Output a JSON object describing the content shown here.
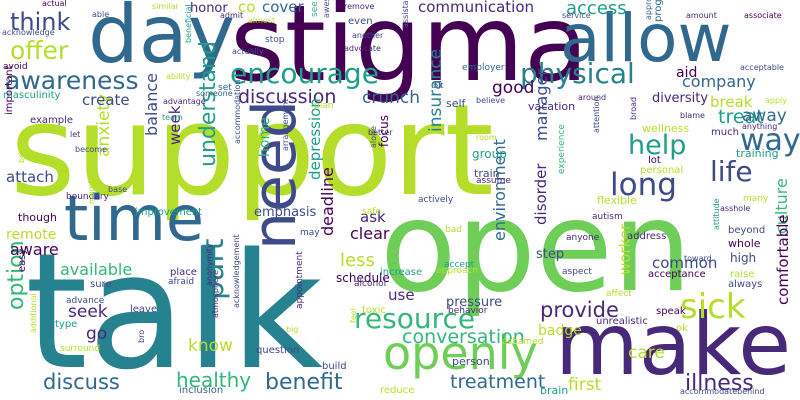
{
  "palette": {
    "lime": "#b5de2b",
    "green": "#6ece58",
    "teal": "#35b779",
    "sea": "#1f9e89",
    "cyan": "#26828e",
    "blue": "#31688e",
    "indigo": "#3e4a89",
    "violet": "#482878",
    "purple": "#440154"
  },
  "words": [
    {
      "text": "support",
      "color": "lime"
    },
    {
      "text": "talk",
      "color": "cyan"
    },
    {
      "text": "open",
      "color": "green"
    },
    {
      "text": "stigma",
      "color": "purple"
    },
    {
      "text": "day",
      "color": "blue"
    },
    {
      "text": "allow",
      "color": "blue"
    },
    {
      "text": "make",
      "color": "violet"
    },
    {
      "text": "time",
      "color": "blue"
    },
    {
      "text": "need",
      "color": "indigo"
    },
    {
      "text": "openly",
      "color": "green"
    },
    {
      "text": "encourage",
      "color": "sea"
    },
    {
      "text": "physical",
      "color": "cyan"
    },
    {
      "text": "awareness",
      "color": "blue"
    },
    {
      "text": "resource",
      "color": "teal"
    },
    {
      "text": "sick",
      "color": "lime"
    },
    {
      "text": "long",
      "color": "indigo"
    },
    {
      "text": "life",
      "color": "indigo"
    },
    {
      "text": "part",
      "color": "cyan"
    },
    {
      "text": "way",
      "color": "blue"
    },
    {
      "text": "help",
      "color": "sea"
    },
    {
      "text": "offer",
      "color": "lime"
    },
    {
      "text": "think",
      "color": "indigo"
    },
    {
      "text": "benefit",
      "color": "blue"
    },
    {
      "text": "discuss",
      "color": "blue"
    },
    {
      "text": "option",
      "color": "teal"
    },
    {
      "text": "treatment",
      "color": "blue"
    },
    {
      "text": "illness",
      "color": "violet"
    },
    {
      "text": "healthy",
      "color": "teal"
    },
    {
      "text": "understand",
      "color": "sea"
    },
    {
      "text": "conversation",
      "color": "teal"
    },
    {
      "text": "provide",
      "color": "violet"
    },
    {
      "text": "discussion",
      "color": "violet"
    },
    {
      "text": "crunch",
      "color": "blue"
    },
    {
      "text": "treat",
      "color": "sea"
    },
    {
      "text": "access",
      "color": "sea"
    },
    {
      "text": "communication",
      "color": "violet"
    },
    {
      "text": "company",
      "color": "blue"
    },
    {
      "text": "good",
      "color": "purple"
    },
    {
      "text": "cover",
      "color": "blue"
    },
    {
      "text": "honor",
      "color": "violet"
    },
    {
      "text": "co",
      "color": "lime"
    },
    {
      "text": "away",
      "color": "blue"
    },
    {
      "text": "break",
      "color": "lime"
    },
    {
      "text": "culture",
      "color": "teal"
    },
    {
      "text": "care",
      "color": "lime"
    },
    {
      "text": "first",
      "color": "lime"
    },
    {
      "text": "know",
      "color": "lime"
    },
    {
      "text": "go",
      "color": "violet"
    },
    {
      "text": "seek",
      "color": "violet"
    },
    {
      "text": "less",
      "color": "lime"
    },
    {
      "text": "clear",
      "color": "purple"
    },
    {
      "text": "ask",
      "color": "violet"
    },
    {
      "text": "use",
      "color": "violet"
    },
    {
      "text": "available",
      "color": "teal"
    },
    {
      "text": "remote",
      "color": "lime"
    },
    {
      "text": "aware",
      "color": "purple"
    },
    {
      "text": "attach",
      "color": "indigo"
    },
    {
      "text": "anxiety",
      "color": "lime"
    },
    {
      "text": "balance",
      "color": "indigo"
    },
    {
      "text": "week",
      "color": "violet"
    },
    {
      "text": "create",
      "color": "indigo"
    },
    {
      "text": "home",
      "color": "teal"
    },
    {
      "text": "depression",
      "color": "sea"
    },
    {
      "text": "deadline",
      "color": "purple"
    },
    {
      "text": "insurance",
      "color": "cyan"
    },
    {
      "text": "manager",
      "color": "indigo"
    },
    {
      "text": "disorder",
      "color": "violet"
    },
    {
      "text": "environment",
      "color": "blue"
    },
    {
      "text": "worker",
      "color": "lime"
    },
    {
      "text": "common",
      "color": "indigo"
    },
    {
      "text": "badge",
      "color": "lime"
    },
    {
      "text": "comfortable",
      "color": "purple"
    },
    {
      "text": "aid",
      "color": "purple"
    },
    {
      "text": "diversity",
      "color": "violet"
    },
    {
      "text": "emphasis",
      "color": "indigo"
    },
    {
      "text": "schedule",
      "color": "purple"
    },
    {
      "text": "pressure",
      "color": "indigo"
    },
    {
      "text": "focus",
      "color": "purple"
    },
    {
      "text": "step",
      "color": "indigo"
    },
    {
      "text": "group",
      "color": "sea"
    },
    {
      "text": "train",
      "color": "indigo"
    },
    {
      "text": "self",
      "color": "indigo"
    },
    {
      "text": "vacation",
      "color": "violet"
    },
    {
      "text": "program",
      "color": "blue"
    },
    {
      "text": "training",
      "color": "sea"
    },
    {
      "text": "wellness",
      "color": "lime"
    },
    {
      "text": "lot",
      "color": "purple"
    },
    {
      "text": "personal",
      "color": "lime"
    },
    {
      "text": "much",
      "color": "violet"
    },
    {
      "text": "high",
      "color": "indigo"
    },
    {
      "text": "whole",
      "color": "purple"
    },
    {
      "text": "beyond",
      "color": "indigo"
    },
    {
      "text": "raise",
      "color": "lime"
    },
    {
      "text": "always",
      "color": "indigo"
    },
    {
      "text": "acceptance",
      "color": "purple"
    },
    {
      "text": "address",
      "color": "violet"
    },
    {
      "text": "affect",
      "color": "lime"
    },
    {
      "text": "speak",
      "color": "purple"
    },
    {
      "text": "unrealistic",
      "color": "violet"
    },
    {
      "text": "ok",
      "color": "lime"
    },
    {
      "text": "ashamed",
      "color": "lime"
    },
    {
      "text": "person",
      "color": "indigo"
    },
    {
      "text": "brain",
      "color": "sea"
    },
    {
      "text": "reduce",
      "color": "lime"
    },
    {
      "text": "build",
      "color": "indigo"
    },
    {
      "text": "inclusion",
      "color": "blue"
    },
    {
      "text": "question",
      "color": "indigo"
    },
    {
      "text": "appointment",
      "color": "violet"
    },
    {
      "text": "alcohol",
      "color": "violet"
    },
    {
      "text": "toxic",
      "color": "lime"
    },
    {
      "text": "increase",
      "color": "sea"
    },
    {
      "text": "behavior",
      "color": "violet"
    },
    {
      "text": "approach",
      "color": "lime"
    },
    {
      "text": "accept",
      "color": "sea"
    },
    {
      "text": "anyone",
      "color": "violet"
    },
    {
      "text": "aspect",
      "color": "indigo"
    },
    {
      "text": "autism",
      "color": "violet"
    },
    {
      "text": "flexible",
      "color": "lime"
    },
    {
      "text": "actively",
      "color": "indigo"
    },
    {
      "text": "assume",
      "color": "violet"
    },
    {
      "text": "experience",
      "color": "teal"
    },
    {
      "text": "safe",
      "color": "lime"
    },
    {
      "text": "bad",
      "color": "lime"
    },
    {
      "text": "may",
      "color": "indigo"
    },
    {
      "text": "improvement",
      "color": "sea"
    },
    {
      "text": "though",
      "color": "purple"
    },
    {
      "text": "boundary",
      "color": "violet"
    },
    {
      "text": "sure",
      "color": "indigo"
    },
    {
      "text": "advance",
      "color": "indigo"
    },
    {
      "text": "afraid",
      "color": "indigo"
    },
    {
      "text": "place",
      "color": "violet"
    },
    {
      "text": "leave",
      "color": "indigo"
    },
    {
      "text": "type",
      "color": "sea"
    },
    {
      "text": "surround",
      "color": "lime"
    },
    {
      "text": "easy",
      "color": "purple"
    },
    {
      "text": "masculinity",
      "color": "sea"
    },
    {
      "text": "example",
      "color": "violet"
    },
    {
      "text": "important",
      "color": "purple"
    },
    {
      "text": "actual",
      "color": "purple"
    },
    {
      "text": "acknowledge",
      "color": "indigo"
    },
    {
      "text": "avoid",
      "color": "purple"
    },
    {
      "text": "similar",
      "color": "lime"
    },
    {
      "text": "able",
      "color": "indigo"
    },
    {
      "text": "admit",
      "color": "violet"
    },
    {
      "text": "almost",
      "color": "lime"
    },
    {
      "text": "stop",
      "color": "indigo"
    },
    {
      "text": "actually",
      "color": "indigo"
    },
    {
      "text": "someone",
      "color": "blue"
    },
    {
      "text": "set",
      "color": "blue"
    },
    {
      "text": "advantage",
      "color": "violet"
    },
    {
      "text": "team",
      "color": "sea"
    },
    {
      "text": "become",
      "color": "indigo"
    },
    {
      "text": "let",
      "color": "violet"
    },
    {
      "text": "ability",
      "color": "lime"
    },
    {
      "text": "beneficial",
      "color": "sea"
    },
    {
      "text": "remove",
      "color": "violet"
    },
    {
      "text": "even",
      "color": "indigo"
    },
    {
      "text": "another",
      "color": "indigo"
    },
    {
      "text": "advocate",
      "color": "violet"
    },
    {
      "text": "awesome",
      "color": "indigo"
    },
    {
      "text": "see",
      "color": "teal"
    },
    {
      "text": "plan",
      "color": "lime"
    },
    {
      "text": "bit",
      "color": "indigo"
    },
    {
      "text": "believe",
      "color": "indigo"
    },
    {
      "text": "employer",
      "color": "blue"
    },
    {
      "text": "service",
      "color": "indigo"
    },
    {
      "text": "assistance",
      "color": "indigo"
    },
    {
      "text": "around",
      "color": "violet"
    },
    {
      "text": "room",
      "color": "lime"
    },
    {
      "text": "attention",
      "color": "indigo"
    },
    {
      "text": "broad",
      "color": "violet"
    },
    {
      "text": "blame",
      "color": "violet"
    },
    {
      "text": "amount",
      "color": "violet"
    },
    {
      "text": "associate",
      "color": "purple"
    },
    {
      "text": "acceptable",
      "color": "indigo"
    },
    {
      "text": "apply",
      "color": "lime"
    },
    {
      "text": "anything",
      "color": "violet"
    },
    {
      "text": "many",
      "color": "lime"
    },
    {
      "text": "asshole",
      "color": "violet"
    },
    {
      "text": "attitude",
      "color": "sea"
    },
    {
      "text": "toward",
      "color": "indigo"
    },
    {
      "text": "appropriate",
      "color": "blue"
    },
    {
      "text": "accommodatebehind",
      "color": "indigo"
    },
    {
      "text": "better",
      "color": "violet"
    },
    {
      "text": "alone",
      "color": "indigo"
    },
    {
      "text": "accommodation",
      "color": "indigo"
    },
    {
      "text": "arrangement",
      "color": "indigo"
    },
    {
      "text": "anonymity",
      "color": "violet"
    },
    {
      "text": "acknowledgement",
      "color": "indigo"
    },
    {
      "text": "big",
      "color": "lime"
    },
    {
      "text": "base",
      "color": "indigo"
    },
    {
      "text": "member",
      "color": "lime"
    },
    {
      "text": "bring",
      "color": "lime"
    },
    {
      "text": "additional",
      "color": "lime"
    },
    {
      "text": "bro",
      "color": "violet"
    },
    {
      "text": "atmosphere",
      "color": "violet"
    },
    {
      "text": "feel",
      "color": "lime"
    }
  ]
}
